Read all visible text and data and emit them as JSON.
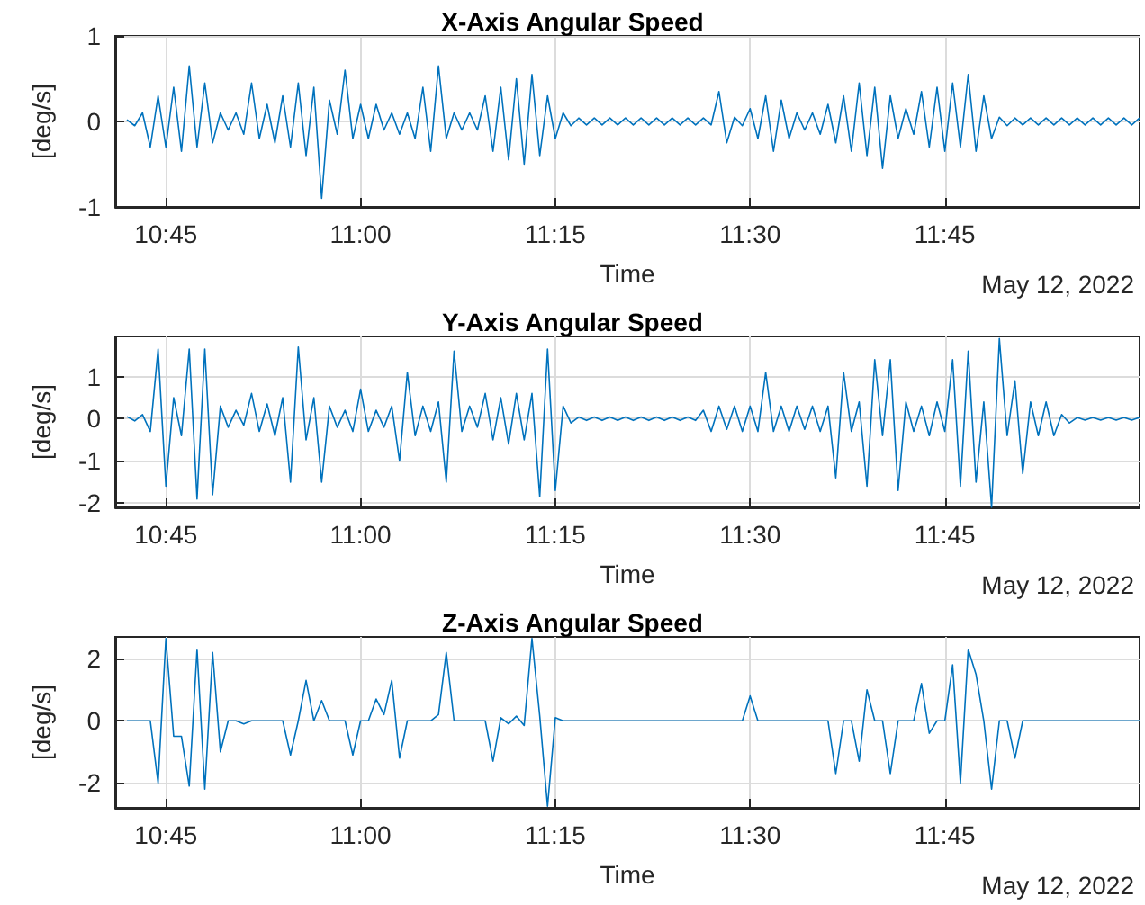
{
  "chart_data": [
    {
      "type": "line",
      "title": "X-Axis Angular Speed",
      "xlabel": "Time",
      "ylabel": "[deg/s]",
      "annotations": [
        "May 12, 2022"
      ],
      "color": "#0072bd",
      "grid": true,
      "marker": "none",
      "line_style": "solid",
      "x": [
        10.7,
        10.71,
        10.72,
        10.73,
        10.74,
        10.75,
        10.76,
        10.77,
        10.78,
        10.79,
        10.8,
        10.81,
        10.82,
        10.83,
        10.84,
        10.85,
        10.86,
        10.87,
        10.88,
        10.89,
        10.9,
        10.91,
        10.92,
        10.93,
        10.94,
        10.95,
        10.96,
        10.97,
        10.98,
        10.99,
        11.0,
        11.01,
        11.02,
        11.03,
        11.04,
        11.05,
        11.06,
        11.07,
        11.08,
        11.09,
        11.1,
        11.11,
        11.12,
        11.13,
        11.14,
        11.15,
        11.16,
        11.17,
        11.18,
        11.19,
        11.2,
        11.21,
        11.22,
        11.23,
        11.24,
        11.25,
        11.26,
        11.27,
        11.28,
        11.29,
        11.3,
        11.31,
        11.32,
        11.33,
        11.34,
        11.35,
        11.36,
        11.37,
        11.38,
        11.39,
        11.4,
        11.41,
        11.42,
        11.43,
        11.44,
        11.45,
        11.46,
        11.47,
        11.48,
        11.49,
        11.5,
        11.51,
        11.52,
        11.53,
        11.54,
        11.55,
        11.56,
        11.57,
        11.58,
        11.59,
        11.6,
        11.61,
        11.62,
        11.63,
        11.64,
        11.65,
        11.66,
        11.67,
        11.68,
        11.69,
        11.7,
        11.71,
        11.72,
        11.73,
        11.74,
        11.75,
        11.76,
        11.77,
        11.78,
        11.79,
        11.8,
        11.81,
        11.82,
        11.83,
        11.84,
        11.85,
        11.86,
        11.87,
        11.88,
        11.89,
        11.9,
        11.91,
        11.92,
        11.93,
        11.94,
        11.95,
        11.96,
        11.97,
        11.98,
        11.99,
        12.0
      ],
      "values": [
        0.02,
        -0.05,
        0.1,
        -0.3,
        0.3,
        -0.3,
        0.4,
        -0.35,
        0.65,
        -0.3,
        0.45,
        -0.25,
        0.1,
        -0.1,
        0.1,
        -0.15,
        0.45,
        -0.2,
        0.2,
        -0.25,
        0.3,
        -0.3,
        0.45,
        -0.4,
        0.4,
        -0.9,
        0.25,
        -0.15,
        0.6,
        -0.2,
        0.2,
        -0.2,
        0.2,
        -0.1,
        0.1,
        -0.15,
        0.1,
        -0.2,
        0.4,
        -0.35,
        0.65,
        -0.2,
        0.1,
        -0.1,
        0.1,
        -0.1,
        0.3,
        -0.35,
        0.4,
        -0.45,
        0.5,
        -0.5,
        0.55,
        -0.4,
        0.3,
        -0.2,
        0.1,
        -0.05,
        0.04,
        -0.04,
        0.04,
        -0.04,
        0.04,
        -0.04,
        0.04,
        -0.04,
        0.04,
        -0.04,
        0.04,
        -0.04,
        0.04,
        -0.04,
        0.04,
        -0.04,
        0.04,
        -0.04,
        0.35,
        -0.25,
        0.05,
        -0.05,
        0.15,
        -0.2,
        0.3,
        -0.35,
        0.25,
        -0.2,
        0.1,
        -0.1,
        0.1,
        -0.15,
        0.2,
        -0.25,
        0.3,
        -0.35,
        0.45,
        -0.4,
        0.4,
        -0.55,
        0.3,
        -0.2,
        0.15,
        -0.15,
        0.35,
        -0.3,
        0.4,
        -0.35,
        0.45,
        -0.3,
        0.55,
        -0.35,
        0.3,
        -0.2,
        0.05,
        -0.05,
        0.04,
        -0.04,
        0.04,
        -0.04,
        0.04,
        -0.04,
        0.04,
        -0.04,
        0.04,
        -0.04,
        0.04,
        -0.04,
        0.04,
        -0.04,
        0.04,
        -0.04,
        0.04
      ],
      "xlim": [
        10.685,
        12.0
      ],
      "xticks": [
        {
          "value": 10.75,
          "label": "10:45"
        },
        {
          "value": 11.0,
          "label": "11:00"
        },
        {
          "value": 11.25,
          "label": "11:15"
        },
        {
          "value": 11.5,
          "label": "11:30"
        },
        {
          "value": 11.75,
          "label": "11:45"
        }
      ],
      "ylim": [
        -1,
        1
      ],
      "yticks": [
        -1,
        0,
        1
      ]
    },
    {
      "type": "line",
      "title": "Y-Axis Angular Speed",
      "xlabel": "Time",
      "ylabel": "[deg/s]",
      "annotations": [
        "May 12, 2022"
      ],
      "color": "#0072bd",
      "grid": true,
      "marker": "none",
      "line_style": "solid",
      "x": [
        10.7,
        10.71,
        10.72,
        10.73,
        10.74,
        10.75,
        10.76,
        10.77,
        10.78,
        10.79,
        10.8,
        10.81,
        10.82,
        10.83,
        10.84,
        10.85,
        10.86,
        10.87,
        10.88,
        10.89,
        10.9,
        10.91,
        10.92,
        10.93,
        10.94,
        10.95,
        10.96,
        10.97,
        10.98,
        10.99,
        11.0,
        11.01,
        11.02,
        11.03,
        11.04,
        11.05,
        11.06,
        11.07,
        11.08,
        11.09,
        11.1,
        11.11,
        11.12,
        11.13,
        11.14,
        11.15,
        11.16,
        11.17,
        11.18,
        11.19,
        11.2,
        11.21,
        11.22,
        11.23,
        11.24,
        11.25,
        11.26,
        11.27,
        11.28,
        11.29,
        11.3,
        11.31,
        11.32,
        11.33,
        11.34,
        11.35,
        11.36,
        11.37,
        11.38,
        11.39,
        11.4,
        11.41,
        11.42,
        11.43,
        11.44,
        11.45,
        11.46,
        11.47,
        11.48,
        11.49,
        11.5,
        11.51,
        11.52,
        11.53,
        11.54,
        11.55,
        11.56,
        11.57,
        11.58,
        11.59,
        11.6,
        11.61,
        11.62,
        11.63,
        11.64,
        11.65,
        11.66,
        11.67,
        11.68,
        11.69,
        11.7,
        11.71,
        11.72,
        11.73,
        11.74,
        11.75,
        11.76,
        11.77,
        11.78,
        11.79,
        11.8,
        11.81,
        11.82,
        11.83,
        11.84,
        11.85,
        11.86,
        11.87,
        11.88,
        11.89,
        11.9,
        11.91,
        11.92,
        11.93,
        11.94,
        11.95,
        11.96,
        11.97,
        11.98,
        11.99,
        12.0
      ],
      "values": [
        0.05,
        -0.05,
        0.1,
        -0.3,
        1.65,
        -1.6,
        0.5,
        -0.4,
        1.65,
        -1.9,
        1.65,
        -1.8,
        0.3,
        -0.2,
        0.2,
        -0.15,
        0.6,
        -0.3,
        0.35,
        -0.4,
        0.5,
        -1.5,
        1.7,
        -0.5,
        0.5,
        -1.5,
        0.3,
        -0.2,
        0.2,
        -0.3,
        0.7,
        -0.3,
        0.2,
        -0.2,
        0.3,
        -1.0,
        1.1,
        -0.4,
        0.3,
        -0.3,
        0.4,
        -1.5,
        1.6,
        -0.3,
        0.3,
        -0.2,
        0.6,
        -0.5,
        0.5,
        -0.6,
        0.6,
        -0.5,
        0.6,
        -1.85,
        1.65,
        -1.7,
        0.3,
        -0.1,
        0.04,
        -0.04,
        0.04,
        -0.04,
        0.04,
        -0.04,
        0.04,
        -0.04,
        0.04,
        -0.04,
        0.04,
        -0.04,
        0.04,
        -0.04,
        0.04,
        -0.04,
        0.2,
        -0.3,
        0.3,
        -0.25,
        0.3,
        -0.3,
        0.3,
        -0.3,
        1.1,
        -0.3,
        0.3,
        -0.3,
        0.3,
        -0.25,
        0.3,
        -0.3,
        0.3,
        -1.4,
        1.1,
        -0.3,
        0.4,
        -1.6,
        1.4,
        -0.4,
        1.4,
        -1.7,
        0.4,
        -0.3,
        0.3,
        -0.4,
        0.4,
        -0.3,
        1.4,
        -1.6,
        1.6,
        -1.5,
        0.4,
        -2.1,
        1.9,
        -0.4,
        0.9,
        -1.3,
        0.4,
        -0.4,
        0.4,
        -0.4,
        0.1,
        -0.1,
        0.03,
        -0.03,
        0.03,
        -0.03,
        0.03,
        -0.03,
        0.03,
        -0.03,
        0.03
      ],
      "xlim": [
        10.685,
        12.0
      ],
      "xticks": [
        {
          "value": 10.75,
          "label": "10:45"
        },
        {
          "value": 11.0,
          "label": "11:00"
        },
        {
          "value": 11.25,
          "label": "11:15"
        },
        {
          "value": 11.5,
          "label": "11:30"
        },
        {
          "value": 11.75,
          "label": "11:45"
        }
      ],
      "ylim": [
        -2.1,
        1.95
      ],
      "yticks": [
        -2,
        -1,
        0,
        1
      ]
    },
    {
      "type": "line",
      "title": "Z-Axis Angular Speed",
      "xlabel": "Time",
      "ylabel": "[deg/s]",
      "annotations": [
        "May 12, 2022"
      ],
      "color": "#0072bd",
      "grid": true,
      "marker": "none",
      "line_style": "solid",
      "x": [
        10.7,
        10.71,
        10.72,
        10.73,
        10.74,
        10.75,
        10.76,
        10.77,
        10.78,
        10.79,
        10.8,
        10.81,
        10.82,
        10.83,
        10.84,
        10.85,
        10.86,
        10.87,
        10.88,
        10.89,
        10.9,
        10.91,
        10.92,
        10.93,
        10.94,
        10.95,
        10.96,
        10.97,
        10.98,
        10.99,
        11.0,
        11.01,
        11.02,
        11.03,
        11.04,
        11.05,
        11.06,
        11.07,
        11.08,
        11.09,
        11.1,
        11.11,
        11.12,
        11.13,
        11.14,
        11.15,
        11.16,
        11.17,
        11.18,
        11.19,
        11.2,
        11.21,
        11.22,
        11.23,
        11.24,
        11.25,
        11.26,
        11.27,
        11.28,
        11.29,
        11.3,
        11.31,
        11.32,
        11.33,
        11.34,
        11.35,
        11.36,
        11.37,
        11.38,
        11.39,
        11.4,
        11.41,
        11.42,
        11.43,
        11.44,
        11.45,
        11.46,
        11.47,
        11.48,
        11.49,
        11.5,
        11.51,
        11.52,
        11.53,
        11.54,
        11.55,
        11.56,
        11.57,
        11.58,
        11.59,
        11.6,
        11.61,
        11.62,
        11.63,
        11.64,
        11.65,
        11.66,
        11.67,
        11.68,
        11.69,
        11.7,
        11.71,
        11.72,
        11.73,
        11.74,
        11.75,
        11.76,
        11.77,
        11.78,
        11.79,
        11.8,
        11.81,
        11.82,
        11.83,
        11.84,
        11.85,
        11.86,
        11.87,
        11.88,
        11.89,
        11.9,
        11.91,
        11.92,
        11.93,
        11.94,
        11.95,
        11.96,
        11.97,
        11.98,
        11.99,
        12.0
      ],
      "values": [
        0,
        0,
        0,
        0,
        -2.0,
        2.65,
        -0.5,
        -0.5,
        -2.1,
        2.3,
        -2.2,
        2.2,
        -1.0,
        0,
        0,
        -0.1,
        0,
        0,
        0,
        0,
        0,
        -1.1,
        0,
        1.3,
        0,
        0.65,
        0,
        0,
        0,
        -1.1,
        0,
        0,
        0.7,
        0.2,
        1.3,
        -1.2,
        0,
        0,
        0,
        0,
        0.2,
        2.2,
        0,
        0,
        0,
        0,
        0,
        -1.3,
        0.1,
        -0.1,
        0.15,
        -0.15,
        2.65,
        0.15,
        -2.75,
        0.1,
        0,
        0,
        0,
        0,
        0,
        0,
        0,
        0,
        0,
        0,
        0,
        0,
        0,
        0,
        0,
        0,
        0,
        0,
        0,
        0,
        0,
        0,
        0,
        0,
        0.8,
        0,
        0,
        0,
        0,
        0,
        0,
        0,
        0,
        0,
        0,
        -1.7,
        0,
        0,
        -1.3,
        1.0,
        0,
        0,
        -1.7,
        0,
        0,
        0,
        1.2,
        -0.4,
        0,
        0,
        1.8,
        -2.0,
        2.3,
        1.5,
        0,
        -2.2,
        0,
        0,
        -1.2,
        0,
        0,
        0,
        0,
        0,
        0,
        0,
        0,
        0,
        0,
        0,
        0,
        0,
        0,
        0,
        0
      ],
      "xlim": [
        10.685,
        12.0
      ],
      "xticks": [
        {
          "value": 10.75,
          "label": "10:45"
        },
        {
          "value": 11.0,
          "label": "11:00"
        },
        {
          "value": 11.25,
          "label": "11:15"
        },
        {
          "value": 11.5,
          "label": "11:30"
        },
        {
          "value": 11.75,
          "label": "11:45"
        }
      ],
      "ylim": [
        -2.8,
        2.7
      ],
      "yticks": [
        -2,
        0,
        2
      ]
    }
  ]
}
